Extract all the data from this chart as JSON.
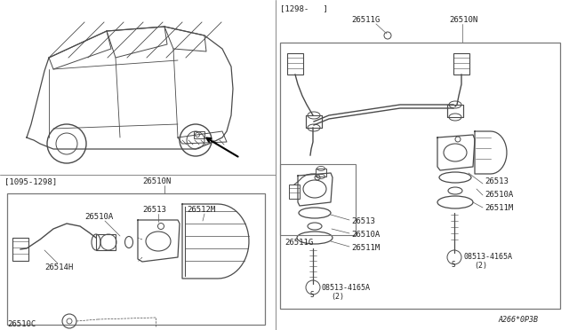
{
  "bg_color": "#ffffff",
  "line_color": "#4a4a4a",
  "text_color": "#222222",
  "border_color": "#666666",
  "diagram_note": "A266*0P3B",
  "date_bracket_left": "[1095-1298]",
  "date_bracket_right": "[1298-   ]",
  "label_26510N_top": "26510N",
  "label_26511G": "26511G",
  "label_26510N": "26510N",
  "label_26513_r": "26513",
  "label_26510A_r": "26510A",
  "label_26511M_r": "26511M",
  "label_26513_l": "26513",
  "label_26510A_l": "26510A",
  "label_26511M_l": "26511M",
  "label_08513_r": "08513-4165A",
  "label_08513_r2": "(2)",
  "label_08513_l": "08513-4165A",
  "label_08513_l2": "(2)",
  "label_26511G_side": "26511G",
  "label_26510A_box": "26510A",
  "label_26513_box": "26513",
  "label_26512M_box": "26512M",
  "label_26514H_box": "26514H",
  "label_26510C_box": "26510C"
}
